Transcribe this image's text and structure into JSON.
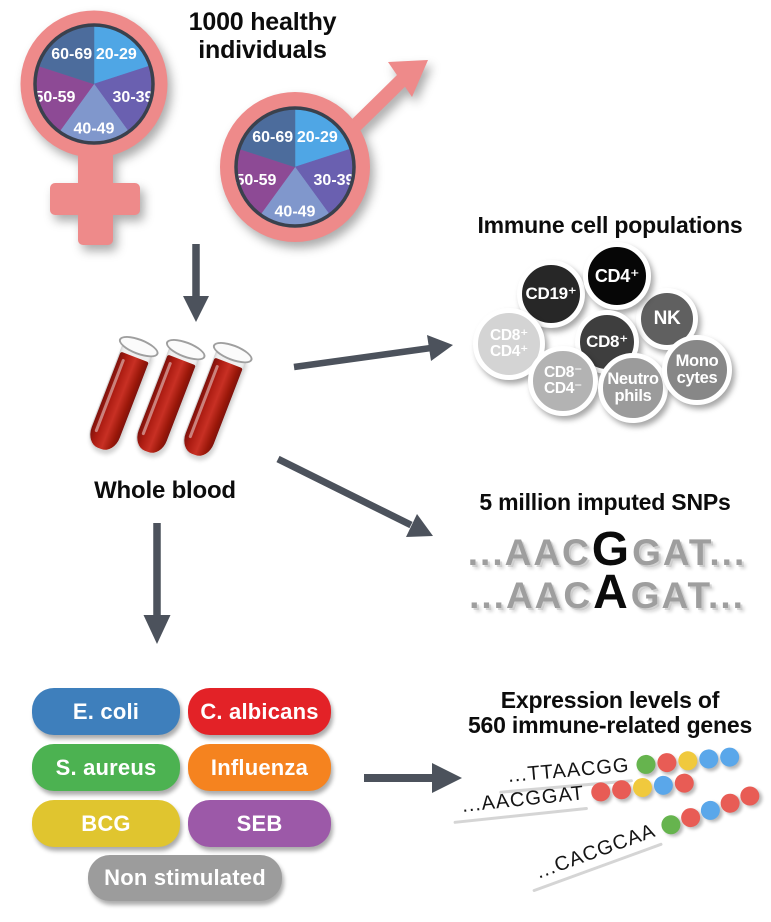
{
  "headings": {
    "cohort_line1": "1000 healthy",
    "cohort_line2": "individuals",
    "whole_blood": "Whole blood",
    "immune": "Immune cell populations",
    "snps": "5 million imputed SNPs",
    "expression_line1": "Expression levels of",
    "expression_line2": "560 immune-related genes"
  },
  "demographics": {
    "female_symbol": "female-gender-symbol",
    "male_symbol": "male-gender-symbol",
    "symbol_color": "#EE8A8A",
    "pie_border_color": "#3A414D",
    "age_groups": [
      {
        "label": "20-29",
        "color": "#4FA6E5"
      },
      {
        "label": "30-39",
        "color": "#6A60B0"
      },
      {
        "label": "40-49",
        "color": "#8097CC"
      },
      {
        "label": "50-59",
        "color": "#8D4A95"
      },
      {
        "label": "60-69",
        "color": "#4C6C9C"
      }
    ]
  },
  "immune_cells": [
    {
      "label": "CD19⁺",
      "color": "#272727"
    },
    {
      "label": "NK",
      "color": "#606060"
    },
    {
      "label": "CD4⁺",
      "color": "#060606"
    },
    {
      "label": "CD8⁺",
      "color": "#3E3E3E"
    },
    {
      "label": "CD8⁺\nCD4⁺",
      "color": "#D4D4D4"
    },
    {
      "label": "CD8⁻\nCD4⁻",
      "color": "#B3B3B3"
    },
    {
      "label": "Neutro\nphils",
      "color": "#9B9B9B"
    },
    {
      "label": "Mono\ncytes",
      "color": "#878787"
    }
  ],
  "snps": {
    "sequences": [
      {
        "pre": "...AAC",
        "variant": "G",
        "post": "GAT..."
      },
      {
        "pre": "...AAC",
        "variant": "A",
        "post": "GAT..."
      }
    ]
  },
  "stimuli": [
    {
      "label": "E. coli",
      "color": "#3E7FBC"
    },
    {
      "label": "C. albicans",
      "color": "#E32227"
    },
    {
      "label": "S. aureus",
      "color": "#4CB251"
    },
    {
      "label": "Influenza",
      "color": "#F5831F"
    },
    {
      "label": "BCG",
      "color": "#E0C52F"
    },
    {
      "label": "SEB",
      "color": "#9C59A8"
    },
    {
      "label": "Non stimulated",
      "color": "#9C9C9C"
    }
  ],
  "expression_genes": [
    {
      "sequence": "...TTAACGG",
      "dots": [
        "green",
        "red",
        "yellow",
        "blue",
        "blue"
      ]
    },
    {
      "sequence": "...AACGGAT",
      "dots": [
        "red",
        "red",
        "yellow",
        "blue",
        "red"
      ]
    },
    {
      "sequence": "...CACGCAA",
      "dots": [
        "green",
        "red",
        "blue",
        "red",
        "red"
      ]
    }
  ],
  "dot_palette": {
    "green": "#66B44E",
    "red": "#E85C55",
    "yellow": "#F0C93D",
    "blue": "#5AA7EA"
  },
  "arrow_color": "#4C525C"
}
